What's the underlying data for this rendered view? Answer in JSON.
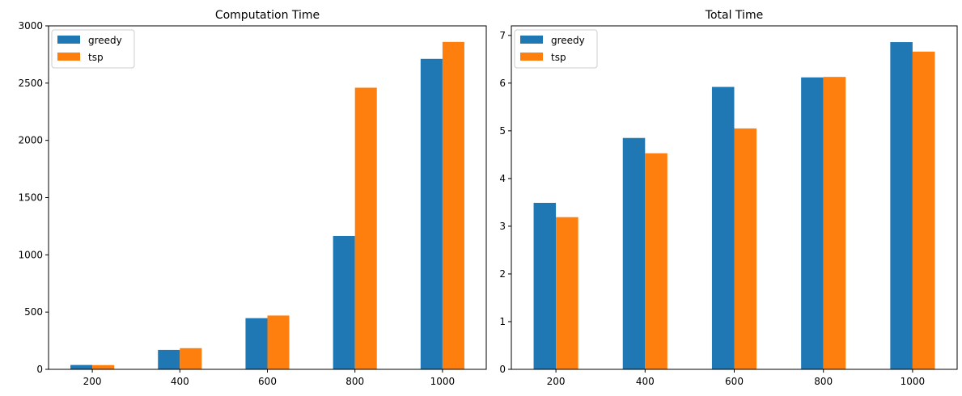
{
  "chart_data": [
    {
      "type": "bar",
      "title": "Computation Time",
      "xlabel": "",
      "ylabel": "",
      "categories": [
        "200",
        "400",
        "600",
        "800",
        "1000"
      ],
      "series": [
        {
          "name": "greedy",
          "color": "#1f77b4",
          "values": [
            38,
            170,
            447,
            1165,
            2712
          ]
        },
        {
          "name": "tsp",
          "color": "#ff7f0e",
          "values": [
            37,
            185,
            470,
            2460,
            2860
          ]
        }
      ],
      "ylim": [
        0,
        3000
      ],
      "yticks": [
        0,
        500,
        1000,
        1500,
        2000,
        2500,
        3000
      ],
      "legend": "top-left",
      "grid": false
    },
    {
      "type": "bar",
      "title": "Total Time",
      "xlabel": "",
      "ylabel": "",
      "categories": [
        "200",
        "400",
        "600",
        "800",
        "1000"
      ],
      "series": [
        {
          "name": "greedy",
          "color": "#1f77b4",
          "values": [
            3.49,
            4.85,
            5.92,
            6.12,
            6.86
          ]
        },
        {
          "name": "tsp",
          "color": "#ff7f0e",
          "values": [
            3.19,
            4.53,
            5.05,
            6.13,
            6.66
          ]
        }
      ],
      "ylim": [
        0,
        7.2
      ],
      "yticks": [
        0,
        1,
        2,
        3,
        4,
        5,
        6,
        7
      ],
      "legend": "top-left",
      "grid": false
    }
  ]
}
